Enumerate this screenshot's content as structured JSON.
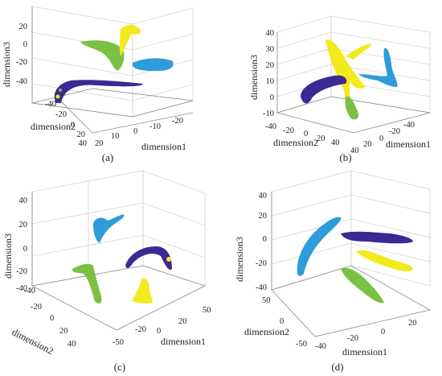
{
  "chart_data": [
    {
      "type": "scatter",
      "subtype": "3d",
      "caption": "(a)",
      "xlabel": "dimension1",
      "ylabel": "dimension2",
      "zlabel": "dimension3",
      "xticks": [
        "20",
        "10",
        "0",
        "-10",
        "-20"
      ],
      "yticks": [
        "-40",
        "-20",
        "0",
        "20",
        "40"
      ],
      "zticks": [
        "20",
        "0",
        "-20",
        "-40"
      ],
      "grid": true,
      "series": [
        {
          "color": "#7AC143",
          "points": [
            [
              -20,
              -30,
              15
            ],
            [
              -10,
              -20,
              10
            ],
            [
              0,
              -10,
              5
            ],
            [
              8,
              0,
              0
            ],
            [
              14,
              10,
              -2
            ]
          ]
        },
        {
          "color": "#F2EA1C",
          "points": [
            [
              20,
              -40,
              25
            ],
            [
              15,
              -30,
              18
            ],
            [
              10,
              -20,
              12
            ],
            [
              6,
              -10,
              8
            ]
          ]
        },
        {
          "color": "#2E9BDA",
          "points": [
            [
              -15,
              10,
              -8
            ],
            [
              -20,
              20,
              -5
            ],
            [
              -25,
              30,
              -4
            ],
            [
              -28,
              40,
              -6
            ]
          ]
        },
        {
          "color": "#3A2A93",
          "points": [
            [
              15,
              15,
              -40
            ],
            [
              10,
              10,
              -30
            ],
            [
              0,
              5,
              -28
            ],
            [
              -10,
              0,
              -29
            ],
            [
              -20,
              -5,
              -30
            ]
          ]
        }
      ]
    },
    {
      "type": "scatter",
      "subtype": "3d",
      "caption": "(b)",
      "xlabel": "dimension1",
      "ylabel": "dimension2",
      "zlabel": "dimension3",
      "xticks": [
        "40",
        "20",
        "0",
        "-20",
        "-40"
      ],
      "yticks": [
        "-40",
        "-20",
        "0",
        "20",
        "40"
      ],
      "zticks": [
        "40",
        "30",
        "20",
        "10",
        "0",
        "-10"
      ],
      "grid": true,
      "series": [
        {
          "color": "#F2EA1C",
          "points": [
            [
              30,
              -30,
              35
            ],
            [
              15,
              -15,
              20
            ],
            [
              5,
              0,
              10
            ],
            [
              0,
              5,
              0
            ],
            [
              -5,
              10,
              -5
            ]
          ]
        },
        {
          "color": "#2E9BDA",
          "points": [
            [
              -35,
              30,
              30
            ],
            [
              -30,
              25,
              20
            ],
            [
              -25,
              15,
              10
            ],
            [
              -15,
              5,
              5
            ]
          ]
        },
        {
          "color": "#3A2A93",
          "points": [
            [
              10,
              20,
              0
            ],
            [
              0,
              10,
              -3
            ],
            [
              -5,
              0,
              -5
            ],
            [
              -8,
              -10,
              -8
            ]
          ]
        },
        {
          "color": "#7AC143",
          "points": [
            [
              5,
              15,
              -10
            ],
            [
              0,
              10,
              -15
            ],
            [
              -5,
              5,
              -20
            ]
          ]
        }
      ]
    },
    {
      "type": "scatter",
      "subtype": "3d",
      "caption": "(c)",
      "xlabel": "dimension1",
      "ylabel": "dimension2",
      "zlabel": "dimension3",
      "xticks": [
        "-50",
        "-20",
        "0",
        "20",
        "50"
      ],
      "yticks": [
        "-40",
        "-20",
        "0",
        "20",
        "40"
      ],
      "zticks": [
        "40",
        "20",
        "0",
        "-20",
        "-40"
      ],
      "grid": true,
      "series": [
        {
          "color": "#2E9BDA",
          "points": [
            [
              -20,
              -30,
              25
            ],
            [
              -15,
              -25,
              20
            ],
            [
              -10,
              -20,
              25
            ],
            [
              -5,
              -15,
              28
            ]
          ]
        },
        {
          "color": "#7AC143",
          "points": [
            [
              -40,
              0,
              -5
            ],
            [
              -35,
              10,
              -15
            ],
            [
              -30,
              20,
              -30
            ],
            [
              -25,
              30,
              -40
            ]
          ]
        },
        {
          "color": "#3A2A93",
          "points": [
            [
              0,
              10,
              -10
            ],
            [
              10,
              5,
              0
            ],
            [
              20,
              0,
              5
            ],
            [
              30,
              -5,
              -10
            ]
          ]
        },
        {
          "color": "#F2EA1C",
          "points": [
            [
              15,
              20,
              -20
            ],
            [
              20,
              25,
              -30
            ],
            [
              25,
              30,
              -38
            ]
          ]
        }
      ]
    },
    {
      "type": "scatter",
      "subtype": "3d",
      "caption": "(d)",
      "xlabel": "dimension1",
      "ylabel": "dimension2",
      "zlabel": "dimension3",
      "xticks": [
        "-40",
        "-20",
        "0",
        "20"
      ],
      "yticks": [
        "50",
        "0",
        "-50"
      ],
      "zticks": [
        "40",
        "20",
        "0",
        "-20",
        "-40"
      ],
      "grid": true,
      "series": [
        {
          "color": "#2E9BDA",
          "points": [
            [
              -40,
              0,
              -20
            ],
            [
              -30,
              5,
              0
            ],
            [
              -20,
              10,
              15
            ],
            [
              -10,
              15,
              25
            ]
          ]
        },
        {
          "color": "#3A2A93",
          "points": [
            [
              -5,
              0,
              5
            ],
            [
              5,
              -5,
              5
            ],
            [
              15,
              -10,
              3
            ],
            [
              25,
              -15,
              0
            ]
          ]
        },
        {
          "color": "#F2EA1C",
          "points": [
            [
              0,
              -5,
              -10
            ],
            [
              10,
              -10,
              -15
            ],
            [
              20,
              -15,
              -20
            ]
          ]
        },
        {
          "color": "#7AC143",
          "points": [
            [
              -5,
              10,
              -25
            ],
            [
              0,
              15,
              -35
            ],
            [
              10,
              20,
              -45
            ]
          ]
        }
      ]
    }
  ]
}
